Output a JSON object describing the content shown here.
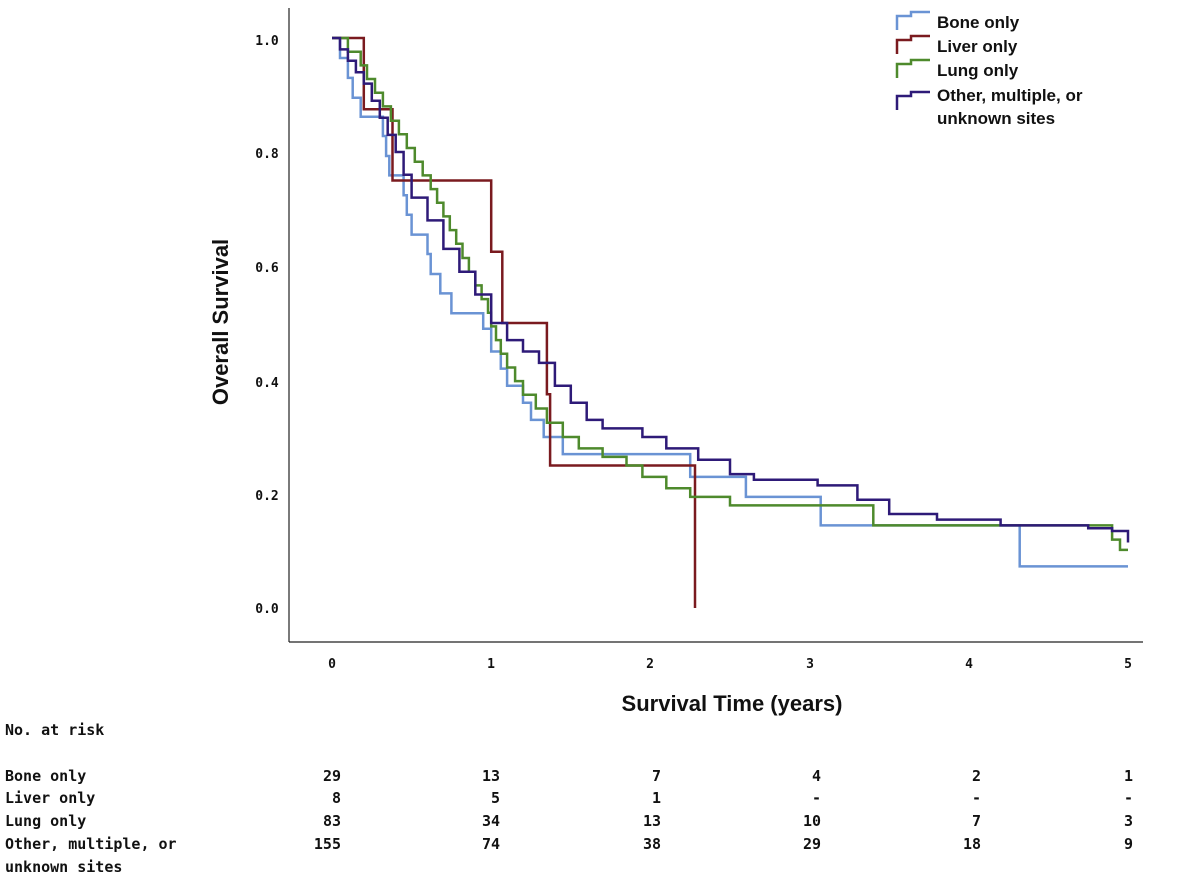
{
  "chart_data": {
    "type": "line",
    "subtype": "kaplan-meier step",
    "xlabel": "Survival Time (years)",
    "ylabel": "Overall Survival",
    "xlim": [
      0,
      5
    ],
    "ylim": [
      0,
      1
    ],
    "xticks": [
      "0",
      "1",
      "2",
      "3",
      "4",
      "5"
    ],
    "yticks": [
      "0.0",
      "0.2",
      "0.4",
      "0.6",
      "0.8",
      "1.0"
    ],
    "legend_position": "top-right",
    "series": [
      {
        "name": "Bone only",
        "color": "#6a93d4",
        "points": [
          [
            0,
            1.0
          ],
          [
            0.05,
            0.965
          ],
          [
            0.1,
            0.93
          ],
          [
            0.13,
            0.895
          ],
          [
            0.18,
            0.862
          ],
          [
            0.32,
            0.828
          ],
          [
            0.34,
            0.793
          ],
          [
            0.36,
            0.759
          ],
          [
            0.45,
            0.724
          ],
          [
            0.47,
            0.69
          ],
          [
            0.5,
            0.655
          ],
          [
            0.6,
            0.621
          ],
          [
            0.62,
            0.586
          ],
          [
            0.68,
            0.552
          ],
          [
            0.75,
            0.517
          ],
          [
            0.95,
            0.49
          ],
          [
            1.0,
            0.45
          ],
          [
            1.06,
            0.42
          ],
          [
            1.1,
            0.39
          ],
          [
            1.2,
            0.36
          ],
          [
            1.25,
            0.33
          ],
          [
            1.33,
            0.3
          ],
          [
            1.45,
            0.27
          ],
          [
            1.95,
            0.27
          ],
          [
            2.25,
            0.23
          ],
          [
            2.6,
            0.195
          ],
          [
            3.07,
            0.145
          ],
          [
            4.32,
            0.073
          ],
          [
            5.0,
            0.073
          ]
        ]
      },
      {
        "name": "Liver only",
        "color": "#7a1a1f",
        "points": [
          [
            0,
            1.0
          ],
          [
            0.2,
            0.875
          ],
          [
            0.38,
            0.75
          ],
          [
            1.0,
            0.625
          ],
          [
            1.07,
            0.5
          ],
          [
            1.35,
            0.375
          ],
          [
            1.37,
            0.25
          ],
          [
            2.28,
            0.25
          ],
          [
            2.28,
            0.0
          ]
        ]
      },
      {
        "name": "Lung only",
        "color": "#4e8a2c",
        "points": [
          [
            0,
            1.0
          ],
          [
            0.1,
            0.976
          ],
          [
            0.18,
            0.952
          ],
          [
            0.22,
            0.928
          ],
          [
            0.27,
            0.904
          ],
          [
            0.32,
            0.88
          ],
          [
            0.37,
            0.855
          ],
          [
            0.42,
            0.831
          ],
          [
            0.47,
            0.807
          ],
          [
            0.52,
            0.783
          ],
          [
            0.57,
            0.759
          ],
          [
            0.62,
            0.735
          ],
          [
            0.66,
            0.711
          ],
          [
            0.7,
            0.687
          ],
          [
            0.74,
            0.663
          ],
          [
            0.78,
            0.639
          ],
          [
            0.82,
            0.614
          ],
          [
            0.86,
            0.59
          ],
          [
            0.9,
            0.566
          ],
          [
            0.94,
            0.542
          ],
          [
            0.98,
            0.518
          ],
          [
            1.0,
            0.494
          ],
          [
            1.03,
            0.47
          ],
          [
            1.06,
            0.446
          ],
          [
            1.1,
            0.422
          ],
          [
            1.15,
            0.398
          ],
          [
            1.2,
            0.374
          ],
          [
            1.28,
            0.35
          ],
          [
            1.35,
            0.325
          ],
          [
            1.45,
            0.3
          ],
          [
            1.55,
            0.28
          ],
          [
            1.7,
            0.265
          ],
          [
            1.85,
            0.25
          ],
          [
            1.95,
            0.23
          ],
          [
            2.1,
            0.21
          ],
          [
            2.25,
            0.195
          ],
          [
            2.5,
            0.18
          ],
          [
            3.4,
            0.145
          ],
          [
            4.9,
            0.12
          ],
          [
            4.95,
            0.102
          ],
          [
            5.0,
            0.102
          ]
        ]
      },
      {
        "name": "Other, multiple, or unknown sites",
        "color": "#2e1a78",
        "points": [
          [
            0,
            1.0
          ],
          [
            0.05,
            0.98
          ],
          [
            0.1,
            0.96
          ],
          [
            0.15,
            0.94
          ],
          [
            0.2,
            0.92
          ],
          [
            0.25,
            0.89
          ],
          [
            0.3,
            0.86
          ],
          [
            0.35,
            0.83
          ],
          [
            0.4,
            0.8
          ],
          [
            0.45,
            0.76
          ],
          [
            0.5,
            0.72
          ],
          [
            0.6,
            0.68
          ],
          [
            0.7,
            0.63
          ],
          [
            0.8,
            0.59
          ],
          [
            0.9,
            0.55
          ],
          [
            1.0,
            0.5
          ],
          [
            1.1,
            0.47
          ],
          [
            1.2,
            0.45
          ],
          [
            1.3,
            0.43
          ],
          [
            1.4,
            0.39
          ],
          [
            1.5,
            0.36
          ],
          [
            1.6,
            0.33
          ],
          [
            1.7,
            0.315
          ],
          [
            1.85,
            0.315
          ],
          [
            1.95,
            0.3
          ],
          [
            2.1,
            0.28
          ],
          [
            2.3,
            0.26
          ],
          [
            2.5,
            0.235
          ],
          [
            2.65,
            0.225
          ],
          [
            3.05,
            0.215
          ],
          [
            3.3,
            0.19
          ],
          [
            3.5,
            0.165
          ],
          [
            3.8,
            0.155
          ],
          [
            4.2,
            0.145
          ],
          [
            4.75,
            0.14
          ],
          [
            4.9,
            0.135
          ],
          [
            5.0,
            0.115
          ]
        ]
      }
    ]
  },
  "legend": {
    "items": [
      {
        "label": "Bone only"
      },
      {
        "label": "Liver only"
      },
      {
        "label": "Lung only"
      },
      {
        "label_line1": "Other, multiple, or",
        "label_line2": "unknown sites"
      }
    ]
  },
  "risk_table": {
    "title": "No. at risk",
    "rows": [
      {
        "label_line1": "Bone only",
        "values": [
          "29",
          "13",
          "7",
          "4",
          "2",
          "1"
        ]
      },
      {
        "label_line1": "Liver only",
        "values": [
          "8",
          "5",
          "1",
          "-",
          "-",
          "-"
        ]
      },
      {
        "label_line1": "Lung only",
        "values": [
          "83",
          "34",
          "13",
          "10",
          "7",
          "3"
        ]
      },
      {
        "label_line1": "Other, multiple, or",
        "label_line2": "unknown sites",
        "values": [
          "155",
          "74",
          "38",
          "29",
          "18",
          "9"
        ]
      }
    ]
  }
}
